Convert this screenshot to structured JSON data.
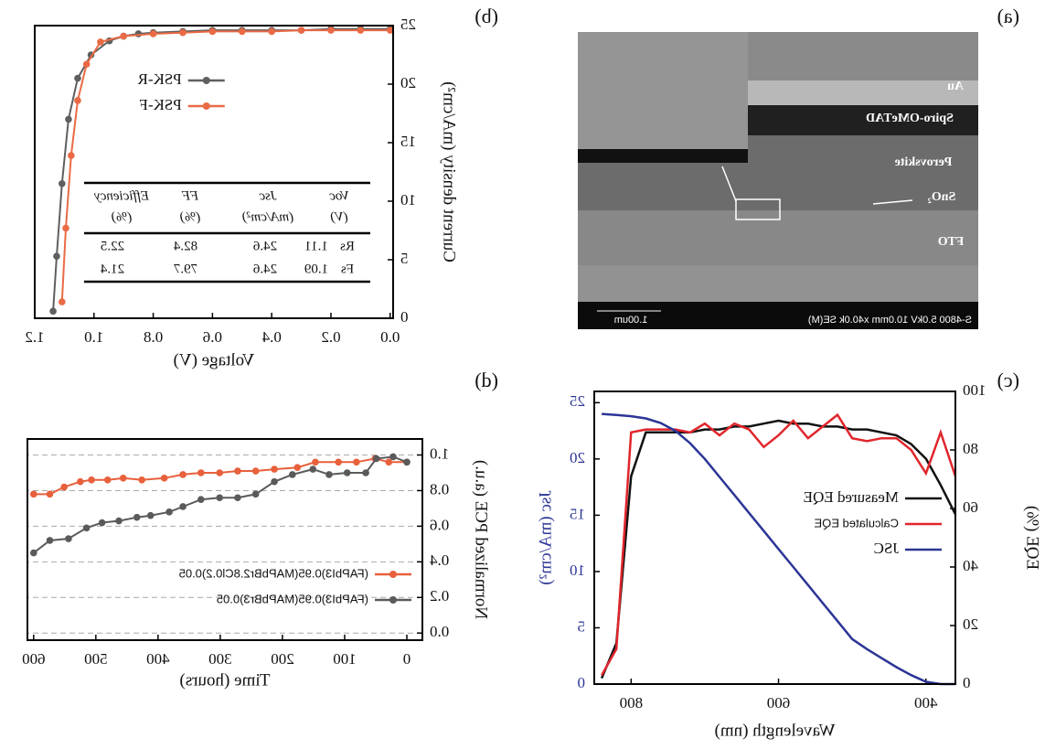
{
  "panel_a": {
    "label": "(a)",
    "layers": [
      "Au",
      "Spiro-OMeTAD",
      "Perovskite",
      "SnO₂",
      "FTO"
    ],
    "info": "S-4800 5.0kV 10.0mm x40.0k SE(M)",
    "scale": "1.00um"
  },
  "chart_data": [
    {
      "type": "line",
      "label": "(b)",
      "xlabel": "Voltage (V)",
      "ylabel": "Current density (mA/cm²)",
      "xlim": [
        -0.01,
        1.2
      ],
      "ylim": [
        0,
        25
      ],
      "xticks": [
        {
          "value": 0,
          "label": "0.0"
        },
        0.2,
        0.4,
        0.6,
        0.8,
        {
          "value": 1,
          "label": "1.0"
        },
        1.2
      ],
      "yticks": [
        0,
        5,
        10,
        15,
        20,
        25
      ],
      "markers": true,
      "legend": "upper right",
      "series": [
        {
          "name": "PSK-R",
          "color": "#5f5f5f",
          "x": [
            0,
            0.1,
            0.2,
            0.3,
            0.4,
            0.5,
            0.6,
            0.7,
            0.8,
            0.85,
            0.9,
            0.948,
            1.01,
            1.055,
            1.086,
            1.108,
            1.126,
            1.138
          ],
          "values": [
            24.7,
            24.7,
            24.7,
            24.6,
            24.6,
            24.6,
            24.6,
            24.5,
            24.4,
            24.3,
            24.1,
            23.7,
            22.5,
            20.5,
            17,
            11.5,
            5.3,
            0.6
          ]
        },
        {
          "name": "PSK-F",
          "color": "#ea6a45",
          "x": [
            0,
            0.1,
            0.2,
            0.3,
            0.4,
            0.5,
            0.6,
            0.7,
            0.8,
            0.9,
            0.978,
            1.025,
            1.055,
            1.077,
            1.095,
            1.108
          ],
          "values": [
            24.6,
            24.6,
            24.6,
            24.6,
            24.5,
            24.5,
            24.5,
            24.4,
            24.3,
            24.1,
            23.6,
            21.7,
            18.6,
            13.9,
            7.7,
            1.4
          ]
        }
      ],
      "table": {
        "header": [
          [
            "Voc",
            "(V)"
          ],
          [
            "Jsc",
            "(mA/cm²)"
          ],
          [
            "FF",
            "(%)"
          ],
          [
            "Efficiency",
            "(%)"
          ]
        ],
        "rows": [
          [
            "Rs",
            "1.11",
            "24.6",
            "82.4",
            "22.5"
          ],
          [
            "Fs",
            "1.09",
            "24.6",
            "79.7",
            "21.4"
          ]
        ]
      }
    },
    {
      "type": "line",
      "label": "(d)",
      "xlabel": "Time (hours)",
      "ylabel": "Normalized PCE (a.u.)",
      "xlim": [
        -25,
        610
      ],
      "ylim": [
        -0.04,
        1.09
      ],
      "xticks": [
        0,
        100,
        200,
        300,
        400,
        500,
        600
      ],
      "yticks": [
        {
          "value": 0,
          "label": "0.0"
        },
        0.2,
        0.4,
        0.6,
        0.8,
        {
          "value": 1,
          "label": "1.0"
        }
      ],
      "grid": true,
      "markers": true,
      "legend": "lower left",
      "series": [
        {
          "name": "(FAPbI3)0.95(MAPbBr2.8Cl0.2)0.05",
          "color": "#e8603c",
          "x": [
            600,
            574,
            551,
            525,
            507,
            481,
            456,
            426,
            390,
            360,
            331,
            301,
            272,
            243,
            213,
            176,
            147,
            110,
            81,
            51,
            29,
            0
          ],
          "values": [
            0.78,
            0.78,
            0.82,
            0.85,
            0.86,
            0.86,
            0.87,
            0.86,
            0.87,
            0.89,
            0.9,
            0.9,
            0.91,
            0.91,
            0.92,
            0.93,
            0.96,
            0.96,
            0.96,
            0.98,
            0.96,
            0.96
          ]
        },
        {
          "name": "(FAPbI3)0.95(MAPbBr3)0.05",
          "color": "#5a5a5a",
          "x": [
            600,
            574,
            544,
            515,
            490,
            463,
            434,
            412,
            382,
            360,
            331,
            301,
            272,
            243,
            213,
            184,
            151,
            125,
            96,
            66,
            49,
            22,
            0
          ],
          "values": [
            0.45,
            0.52,
            0.53,
            0.59,
            0.62,
            0.63,
            0.65,
            0.66,
            0.68,
            0.71,
            0.75,
            0.76,
            0.76,
            0.78,
            0.85,
            0.89,
            0.92,
            0.89,
            0.9,
            0.9,
            0.98,
            0.99,
            0.96
          ]
        }
      ]
    },
    {
      "type": "line",
      "label": "(c)",
      "xlabel": "Wavelength (nm)",
      "ylabel": "EQE (%)",
      "y2label": "Jsc (mA/cm²)",
      "xlim": [
        360,
        850
      ],
      "ylim": [
        0,
        100
      ],
      "y2lim": [
        0,
        26
      ],
      "xticks": [
        400,
        600,
        800
      ],
      "yticks": [
        0,
        20,
        40,
        60,
        80,
        100
      ],
      "y2ticks": [
        0,
        5,
        10,
        15,
        20,
        25
      ],
      "markers": false,
      "legend": "center left",
      "x": [
        360,
        380,
        400,
        420,
        440,
        460,
        480,
        500,
        520,
        540,
        560,
        580,
        600,
        620,
        640,
        660,
        680,
        700,
        720,
        740,
        760,
        780,
        800,
        820,
        840
      ],
      "series": [
        {
          "name": "Measured EQE",
          "color": "#111111",
          "values": [
            58,
            68,
            77,
            82,
            85,
            86,
            87,
            87,
            88,
            88,
            89,
            89,
            90,
            89,
            88,
            88,
            87,
            87,
            86,
            86,
            86,
            86,
            71,
            14,
            2
          ]
        },
        {
          "name": "Calculated EQE",
          "color": "#e0262c",
          "values": [
            71,
            86,
            72,
            80,
            84,
            84,
            83,
            84,
            92,
            88,
            84,
            90,
            85,
            81,
            87,
            89,
            85,
            89,
            86,
            87,
            87,
            87,
            86,
            12,
            3
          ]
        },
        {
          "name": "JSC",
          "color": "#2b3596",
          "axis": "y2",
          "values": [
            0,
            0,
            0.2,
            0.8,
            1.5,
            2.3,
            3.1,
            4.0,
            5.6,
            7.2,
            8.8,
            10.4,
            12.0,
            13.6,
            15.2,
            16.8,
            18.4,
            20.0,
            21.4,
            22.5,
            23.2,
            23.6,
            23.8,
            23.9,
            24.0
          ]
        }
      ]
    }
  ]
}
